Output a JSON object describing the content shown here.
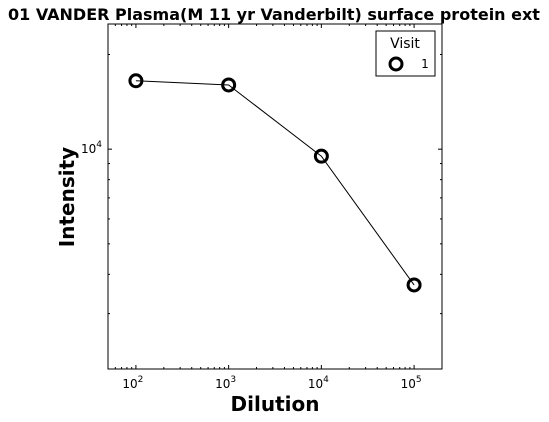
{
  "chart_data": {
    "type": "scatter",
    "title": "01 VANDER Plasma(M 11 yr Vanderbilt) surface protein ext",
    "xlabel": "Dilution",
    "ylabel": "Intensity",
    "x_scale": "log",
    "y_scale": "log",
    "xlim": [
      50,
      200000
    ],
    "ylim": [
      2000,
      25000
    ],
    "x_ticks": [
      {
        "value": 100,
        "base": "10",
        "exp": "2"
      },
      {
        "value": 1000,
        "base": "10",
        "exp": "3"
      },
      {
        "value": 10000,
        "base": "10",
        "exp": "4"
      },
      {
        "value": 100000,
        "base": "10",
        "exp": "5"
      }
    ],
    "y_ticks": [
      {
        "value": 10000,
        "base": "10",
        "exp": "4"
      }
    ],
    "legend": {
      "title": "Visit",
      "placement": "top-right"
    },
    "series": [
      {
        "name": "1",
        "x": [
          100,
          1000,
          10000,
          100000
        ],
        "y": [
          16500,
          16000,
          9500,
          3700
        ]
      }
    ],
    "colors": {
      "marker": "#000000",
      "line": "#000000",
      "background": "#ffffff"
    }
  }
}
